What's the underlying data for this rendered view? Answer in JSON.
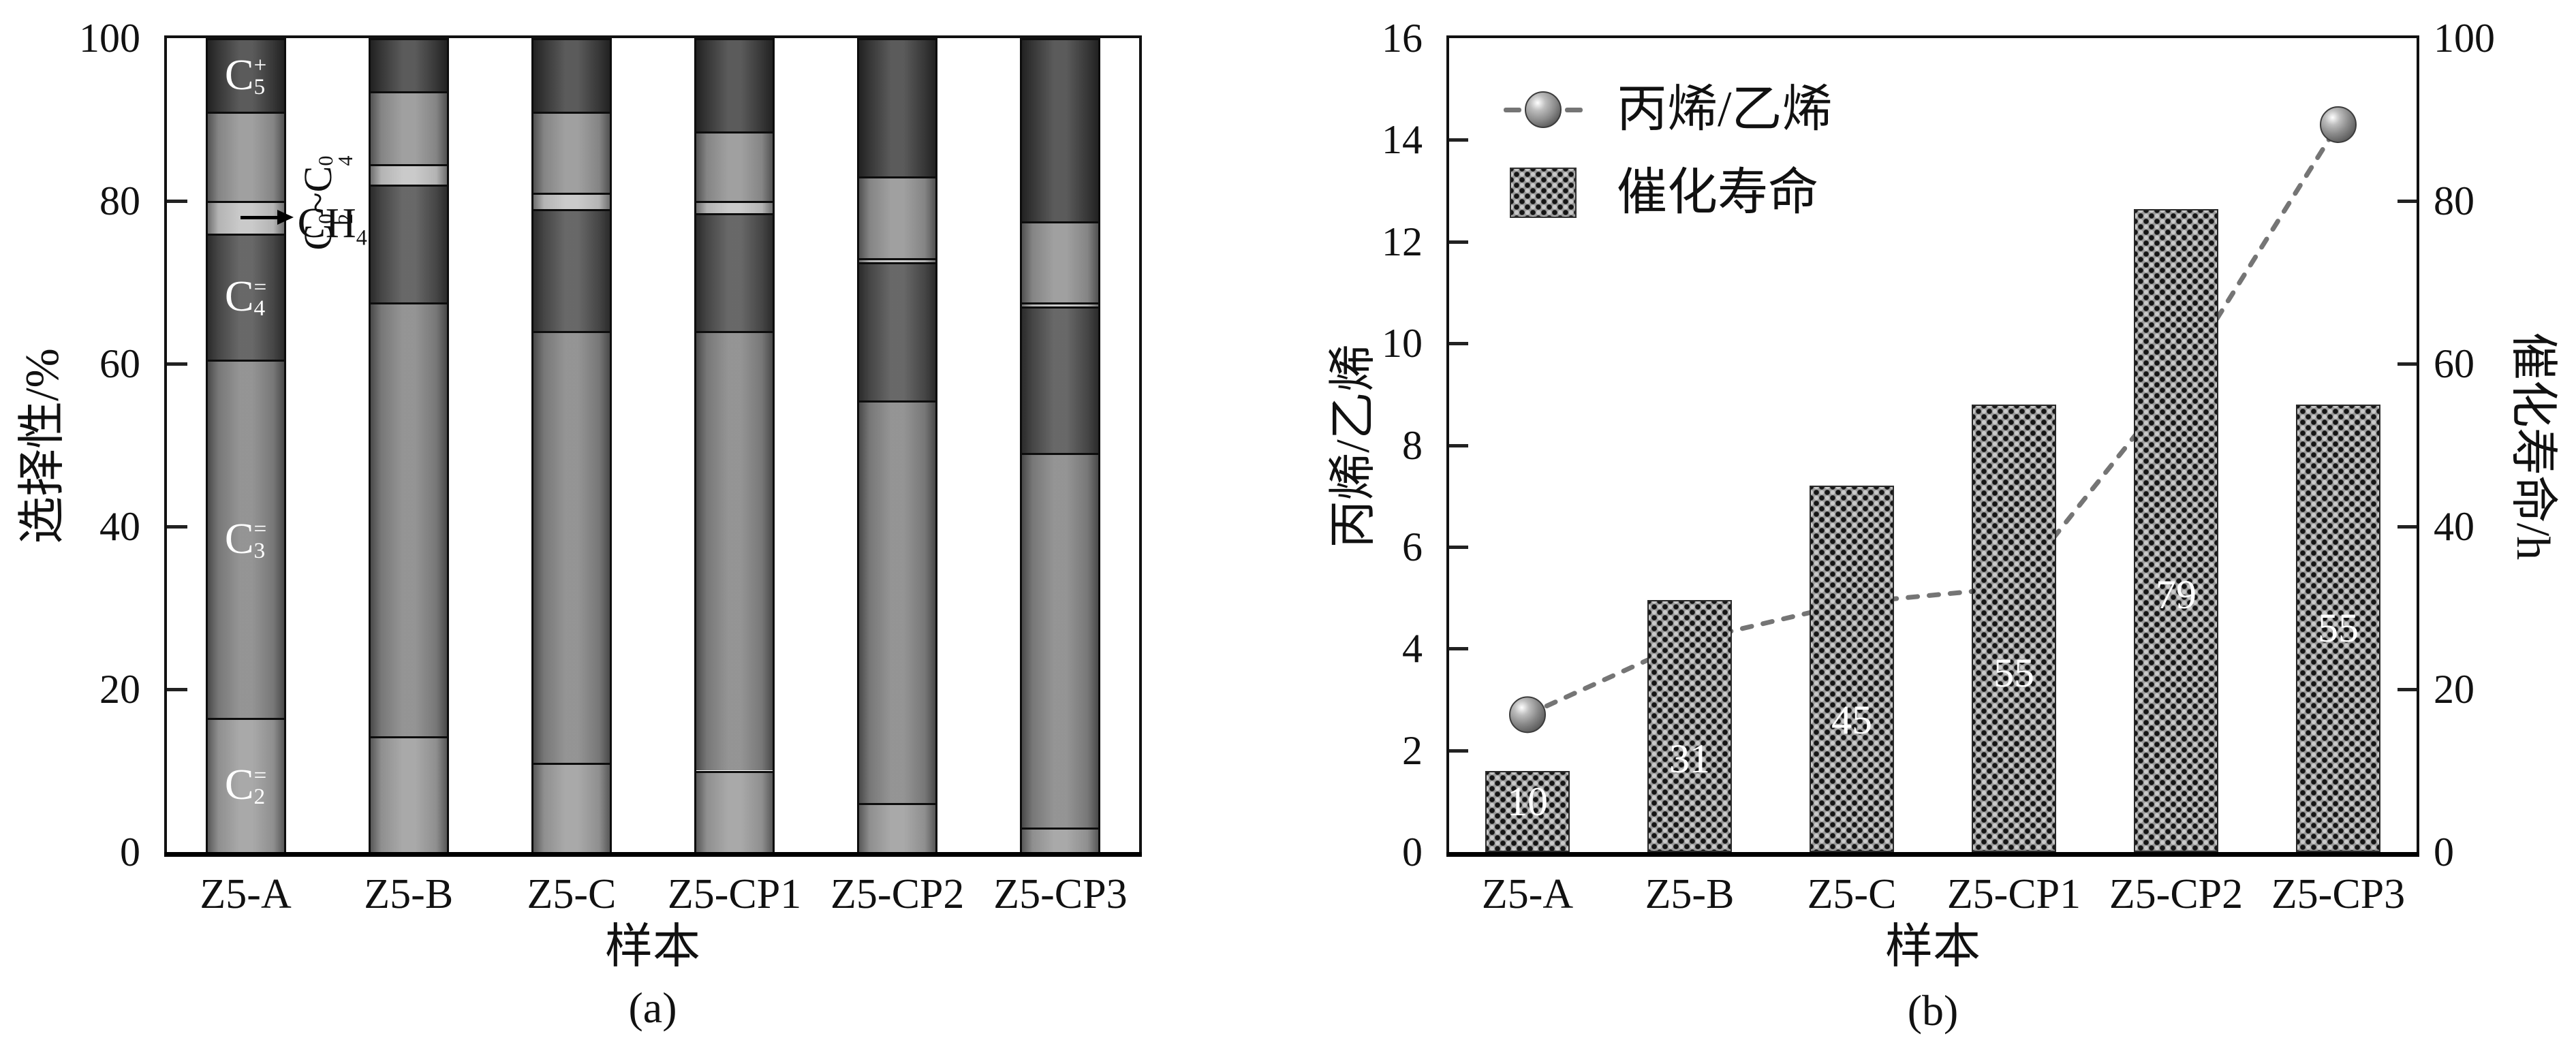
{
  "page": {
    "background": "#ffffff"
  },
  "chart_data": [
    {
      "id": "a",
      "type": "bar",
      "subtype": "stacked-vertical",
      "tag": "(a)",
      "xlabel": "样本",
      "ylabel": "选择性/%",
      "ylim": [
        0,
        100
      ],
      "yticks": [
        0,
        20,
        40,
        60,
        80,
        100
      ],
      "grid": "off",
      "categories": [
        "Z5-A",
        "Z5-B",
        "Z5-C",
        "Z5-CP1",
        "Z5-CP2",
        "Z5-CP3"
      ],
      "series": [
        {
          "name": "C2=",
          "color": "#989898",
          "label_color": "#ffffff",
          "values": [
            16.5,
            14.2,
            11,
            10,
            6,
            3
          ],
          "label_parts": [
            {
              "text": "C"
            },
            {
              "sup": "=",
              "sub": "2"
            }
          ]
        },
        {
          "name": "C3=",
          "color": "#7f7f7f",
          "label_color": "#ffffff",
          "values": [
            44,
            53.3,
            53,
            54,
            49.5,
            46
          ],
          "label_parts": [
            {
              "text": "C"
            },
            {
              "sup": "=",
              "sub": "3"
            }
          ]
        },
        {
          "name": "C4=",
          "color": "#4a4a4a",
          "label_color": "#ffffff",
          "values": [
            15.5,
            14.5,
            15,
            14.5,
            17,
            18
          ],
          "label_parts": [
            {
              "text": "C"
            },
            {
              "sup": "=",
              "sub": "4"
            }
          ]
        },
        {
          "name": "CH4",
          "color": "#bfbfbf",
          "label_color": "#111111",
          "values": [
            4,
            2.5,
            2,
            1.5,
            0.5,
            0.5
          ],
          "label_parts": [
            {
              "text": "CH"
            },
            {
              "sub": "4"
            }
          ]
        },
        {
          "name": "C2_0~C4_0",
          "color": "#8d8d8d",
          "label_color": "#111111",
          "values": [
            11,
            9,
            10,
            8.5,
            10,
            10
          ],
          "label_parts": [
            {
              "text": "C"
            },
            {
              "sup": "0",
              "sub": "2"
            },
            {
              "text": "~C"
            },
            {
              "sup": "0",
              "sub": "4"
            }
          ]
        },
        {
          "name": "C5+",
          "color": "#3a3a3a",
          "label_color": "#ffffff",
          "values": [
            9,
            6.5,
            9,
            11.5,
            17,
            22.5
          ],
          "label_parts": [
            {
              "text": "C"
            },
            {
              "sup": "+",
              "sub": "5"
            }
          ]
        }
      ]
    },
    {
      "id": "b",
      "type": "bar",
      "subtype": "bar-with-line-overlay",
      "tag": "(b)",
      "xlabel": "样本",
      "ylabel_left": "丙烯/乙烯",
      "ylabel_right": "催化寿命/h",
      "ylim_left": [
        0,
        16
      ],
      "yticks_left": [
        0,
        2,
        4,
        6,
        8,
        10,
        12,
        14,
        16
      ],
      "ylim_right": [
        0,
        100
      ],
      "yticks_right": [
        0,
        20,
        40,
        60,
        80,
        100
      ],
      "grid": "off",
      "legend_position": "upper-left",
      "categories": [
        "Z5-A",
        "Z5-B",
        "Z5-C",
        "Z5-CP1",
        "Z5-CP2",
        "Z5-CP3"
      ],
      "bars": {
        "name": "催化寿命",
        "axis": "right",
        "values": [
          10,
          31,
          45,
          55,
          79,
          55
        ],
        "value_label_color": "#ffffff",
        "pattern": {
          "base": "#9b9b9b",
          "dot_dark": "#151515",
          "dot_light": "#c9c9c9"
        }
      },
      "line": {
        "name": "丙烯/乙烯",
        "axis": "left",
        "values": [
          2.7,
          4.15,
          4.9,
          5.2,
          9.2,
          14.3
        ],
        "color": "#757575",
        "style": "dashed",
        "marker": "sphere",
        "marker_fill": [
          "#ffffff",
          "#bdbdbd",
          "#8a8a8a",
          "#4f4f4f"
        ]
      }
    }
  ]
}
